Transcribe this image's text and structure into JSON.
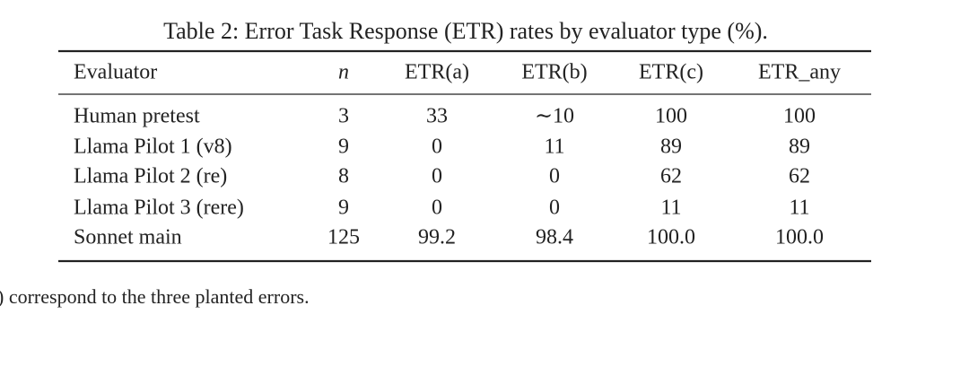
{
  "table": {
    "caption": "Table 2: Error Task Response (ETR) rates by evaluator type (%).",
    "header": [
      "Evaluator",
      "n",
      "ETR(a)",
      "ETR(b)",
      "ETR(c)",
      "ETR_any"
    ],
    "rows": [
      [
        "Human pretest",
        "3",
        "33",
        "∼10",
        "100",
        "100"
      ],
      [
        "Llama Pilot 1 (v8)",
        "9",
        "0",
        "11",
        "89",
        "89"
      ],
      [
        "Llama Pilot 2 (re)",
        "8",
        "0",
        "0",
        "62",
        "62"
      ],
      [
        "Llama Pilot 3 (rere)",
        "9",
        "0",
        "0",
        "11",
        "11"
      ],
      [
        "Sonnet main",
        "125",
        "99.2",
        "98.4",
        "100.0",
        "100.0"
      ]
    ]
  },
  "footnote": ") correspond to the three planted errors."
}
